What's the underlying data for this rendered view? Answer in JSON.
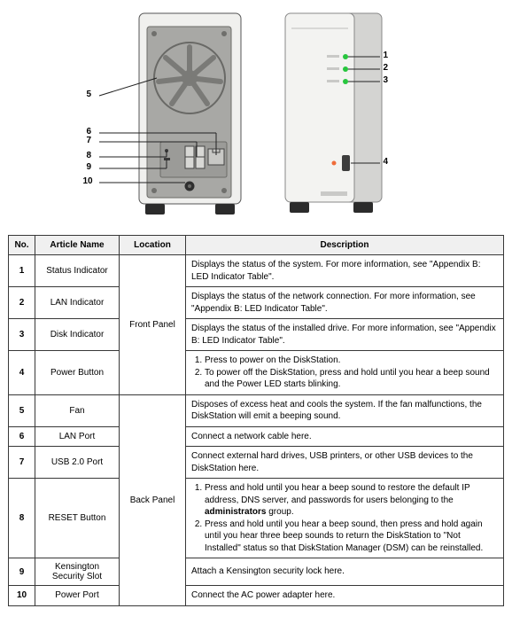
{
  "diagram": {
    "back_view": {
      "body_fill": "#f0f0ee",
      "body_stroke": "#555",
      "panel_fill": "#a8a8a5",
      "panel_stroke": "#6b6b68",
      "foot_fill": "#2b2b2b",
      "screw_fill": "#6f6f6c"
    },
    "front_view": {
      "body_fill": "#f3f3f1",
      "body_side_fill": "#d4d4d2",
      "body_stroke": "#888",
      "led_colors": [
        "#27c63e",
        "#27c63e",
        "#27c63e"
      ],
      "led_radius": 3,
      "power_led_color": "#ef6c3a",
      "foot_fill": "#2b2b2b"
    },
    "callout_color": "#1a1a1a"
  },
  "table": {
    "headers": {
      "no": "No.",
      "name": "Article Name",
      "location": "Location",
      "description": "Description"
    },
    "locations": {
      "front": "Front Panel",
      "back": "Back Panel"
    },
    "rows": [
      {
        "no": "1",
        "name": "Status Indicator",
        "loc": "front",
        "desc_html": "Displays the status of the system. For more information, see \"Appendix B: LED Indicator Table\"."
      },
      {
        "no": "2",
        "name": "LAN Indicator",
        "loc": "front",
        "desc_html": "Displays the status of the network connection. For more information, see \"Appendix B: LED Indicator Table\"."
      },
      {
        "no": "3",
        "name": "Disk Indicator",
        "loc": "front",
        "desc_html": "Displays the status of the installed drive. For more information, see \"Appendix B: LED Indicator Table\"."
      },
      {
        "no": "4",
        "name": "Power Button",
        "loc": "front",
        "desc_html": "<ol><li>Press to power on the DiskStation.</li><li>To power off the DiskStation, press and hold until you hear a beep sound and the Power LED starts blinking.</li></ol>"
      },
      {
        "no": "5",
        "name": "Fan",
        "loc": "back",
        "desc_html": "Disposes of excess heat and cools the system. If the fan malfunctions, the DiskStation will emit a beeping sound."
      },
      {
        "no": "6",
        "name": "LAN Port",
        "loc": "back",
        "desc_html": "Connect a network cable here."
      },
      {
        "no": "7",
        "name": "USB 2.0 Port",
        "loc": "back",
        "desc_html": "Connect external hard drives, USB printers, or other USB devices to the DiskStation here."
      },
      {
        "no": "8",
        "name": "RESET Button",
        "loc": "back",
        "desc_html": "<ol><li>Press and hold until you hear a beep sound to restore the default IP address, DNS server, and passwords for users belonging to the <b>administrators</b> group.</li><li>Press and hold until you hear a beep sound, then press and hold again until you hear three beep sounds to return the DiskStation to \"Not Installed\" status so that DiskStation Manager (DSM) can be reinstalled.</li></ol>"
      },
      {
        "no": "9",
        "name": "Kensington Security Slot",
        "loc": "back",
        "desc_html": "Attach a Kensington security lock here."
      },
      {
        "no": "10",
        "name": "Power Port",
        "loc": "back",
        "desc_html": "Connect the AC power adapter here."
      }
    ],
    "front_rowspan": 4,
    "back_rowspan": 6,
    "col_widths": {
      "no": 30,
      "name": 95,
      "loc": 75
    }
  }
}
